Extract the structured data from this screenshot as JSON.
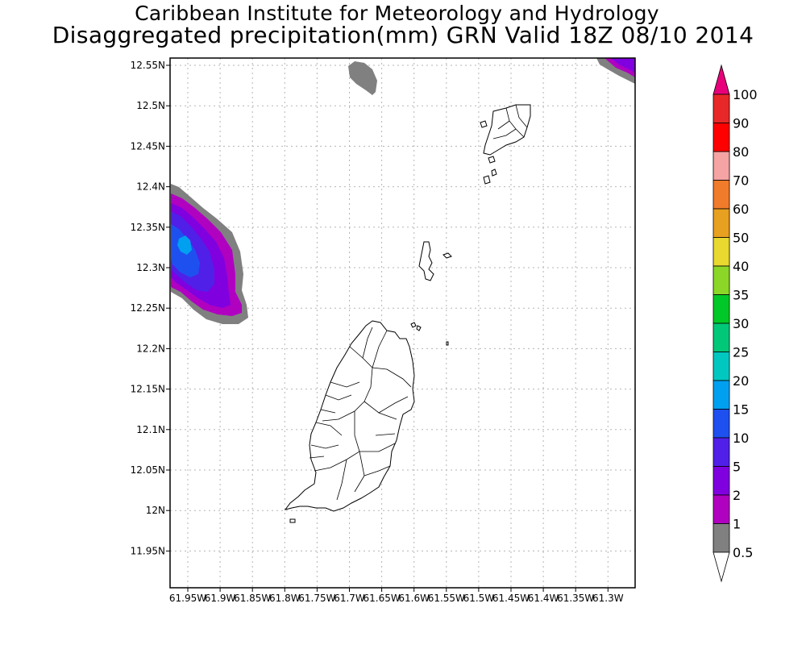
{
  "title": {
    "line1": "Caribbean Institute for Meteorology and Hydrology",
    "line2": "Disaggregated precipitation(mm) GRN Valid 18Z 08/10 2014"
  },
  "axes": {
    "lat_ticks": [
      "12.55N",
      "12.5N",
      "12.45N",
      "12.4N",
      "12.35N",
      "12.3N",
      "12.25N",
      "12.2N",
      "12.15N",
      "12.1N",
      "12.05N",
      "12N",
      "11.95N"
    ],
    "lon_ticks": [
      "61.95W",
      "61.9W",
      "61.85W",
      "61.8W",
      "61.75W",
      "61.7W",
      "61.65W",
      "61.6W",
      "61.55W",
      "61.5W",
      "61.45W",
      "61.4W",
      "61.35W",
      "61.3W"
    ]
  },
  "colorbar": {
    "levels": [
      "100",
      "90",
      "80",
      "70",
      "60",
      "50",
      "40",
      "35",
      "30",
      "25",
      "20",
      "15",
      "10",
      "5",
      "2",
      "1",
      "0.5"
    ],
    "colors": [
      "#e8007a",
      "#e82828",
      "#ff0000",
      "#f5a3a3",
      "#f07b2a",
      "#e8a020",
      "#e8d830",
      "#8cd628",
      "#00c828",
      "#00c878",
      "#00c8c0",
      "#00a0f0",
      "#1e50f0",
      "#5020e8",
      "#8000e0",
      "#b000c0",
      "#808080",
      "#ffffff"
    ]
  },
  "precip_areas": [
    {
      "name": "west-cell",
      "lat_range": [
        12.23,
        12.4
      ],
      "lon_range": [
        -61.97,
        -61.87
      ],
      "peak_mm": 15
    },
    {
      "name": "north-gray-patch",
      "lat_range": [
        12.54,
        12.58
      ],
      "lon_range": [
        -61.7,
        -61.66
      ],
      "peak_mm": 0.5
    },
    {
      "name": "northeast-cell",
      "lat_range": [
        12.53,
        12.57
      ],
      "lon_range": [
        -61.32,
        -61.28
      ],
      "peak_mm": 5
    }
  ]
}
